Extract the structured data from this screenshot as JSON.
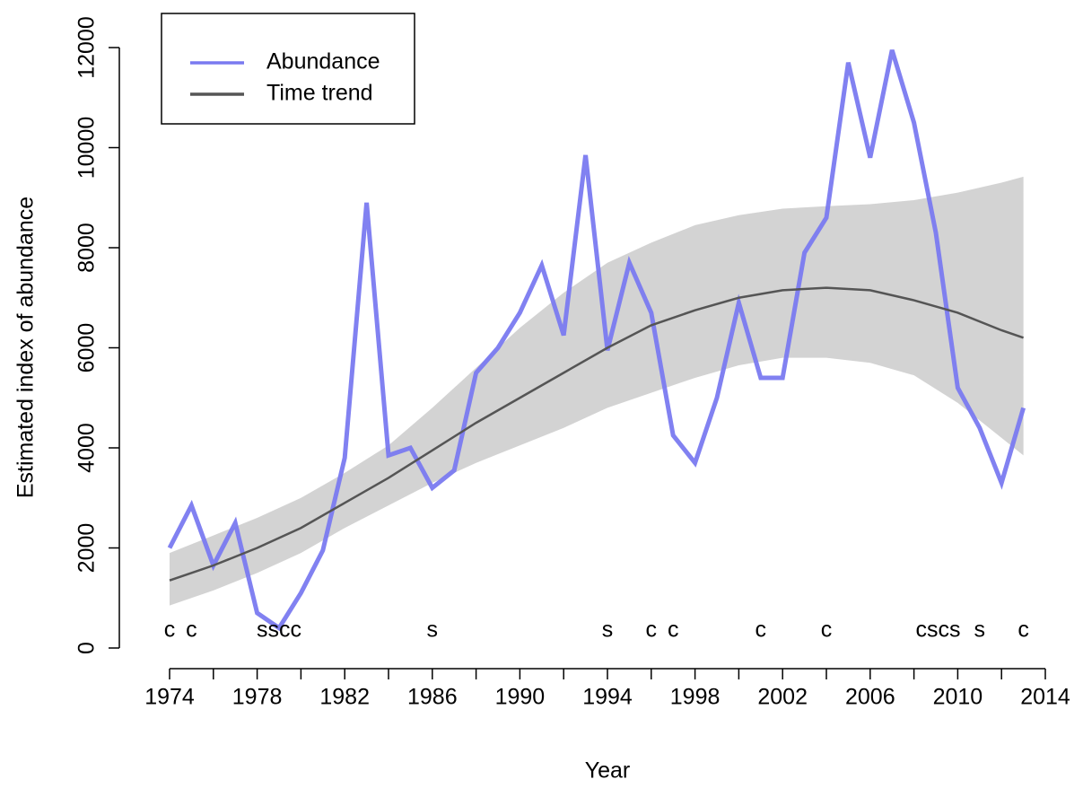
{
  "chart_data": {
    "type": "line",
    "x_label": "Year",
    "y_label": "Estimated index of abundance",
    "x": [
      1974,
      1975,
      1976,
      1977,
      1978,
      1979,
      1980,
      1981,
      1982,
      1983,
      1984,
      1985,
      1986,
      1987,
      1988,
      1989,
      1990,
      1991,
      1992,
      1993,
      1994,
      1995,
      1996,
      1997,
      1998,
      1999,
      2000,
      2001,
      2002,
      2003,
      2004,
      2005,
      2006,
      2007,
      2008,
      2009,
      2010,
      2011,
      2012,
      2013
    ],
    "series": [
      {
        "name": "Abundance",
        "color": "#7a7af0",
        "values": [
          2000,
          2850,
          1650,
          2500,
          700,
          400,
          1100,
          1950,
          3800,
          8900,
          3850,
          4000,
          3200,
          3550,
          5500,
          6000,
          6700,
          7650,
          6250,
          9850,
          5950,
          7700,
          6700,
          4250,
          3700,
          5000,
          6900,
          5400,
          5400,
          7900,
          8600,
          11700,
          9800,
          11950,
          10500,
          8300,
          5200,
          4400,
          3300,
          4800
        ]
      },
      {
        "name": "Time trend",
        "color": "#555555",
        "band_color": "#d3d3d3",
        "x": [
          1974,
          1976,
          1978,
          1980,
          1982,
          1984,
          1986,
          1988,
          1990,
          1992,
          1994,
          1996,
          1998,
          2000,
          2002,
          2004,
          2006,
          2008,
          2010,
          2012,
          2013
        ],
        "values": [
          1350,
          1650,
          2000,
          2400,
          2900,
          3400,
          3950,
          4500,
          5000,
          5500,
          6000,
          6450,
          6750,
          7000,
          7150,
          7200,
          7150,
          6950,
          6700,
          6350,
          6200
        ],
        "lower": [
          850,
          1150,
          1500,
          1900,
          2400,
          2850,
          3300,
          3700,
          4050,
          4400,
          4800,
          5100,
          5400,
          5650,
          5800,
          5800,
          5700,
          5450,
          4900,
          4200,
          3850
        ],
        "upper": [
          1900,
          2250,
          2600,
          3000,
          3500,
          4050,
          4800,
          5600,
          6400,
          7100,
          7700,
          8100,
          8450,
          8650,
          8780,
          8830,
          8870,
          8950,
          9100,
          9300,
          9420
        ]
      }
    ],
    "annotations": [
      {
        "x": 1974,
        "label": "c"
      },
      {
        "x": 1975,
        "label": "c"
      },
      {
        "x": 1979,
        "label": "sscc"
      },
      {
        "x": 1986,
        "label": "s"
      },
      {
        "x": 1994,
        "label": "s"
      },
      {
        "x": 1996,
        "label": "c"
      },
      {
        "x": 1997,
        "label": "c"
      },
      {
        "x": 2001,
        "label": "c"
      },
      {
        "x": 2004,
        "label": "c"
      },
      {
        "x": 2009.1,
        "label": "cscs"
      },
      {
        "x": 2011,
        "label": "s"
      },
      {
        "x": 2013,
        "label": "c"
      }
    ],
    "annotation_y": 200,
    "xlim": [
      1974,
      2014
    ],
    "xticks": [
      1974,
      1978,
      1982,
      1986,
      1990,
      1994,
      1998,
      2002,
      2006,
      2010,
      2014
    ],
    "xminorticks": [
      1976,
      1980,
      1984,
      1988,
      1992,
      1996,
      2000,
      2004,
      2008,
      2012
    ],
    "ylim": [
      0,
      12000
    ],
    "yticks": [
      0,
      2000,
      4000,
      6000,
      8000,
      10000,
      12000
    ],
    "legend": "top-left"
  }
}
